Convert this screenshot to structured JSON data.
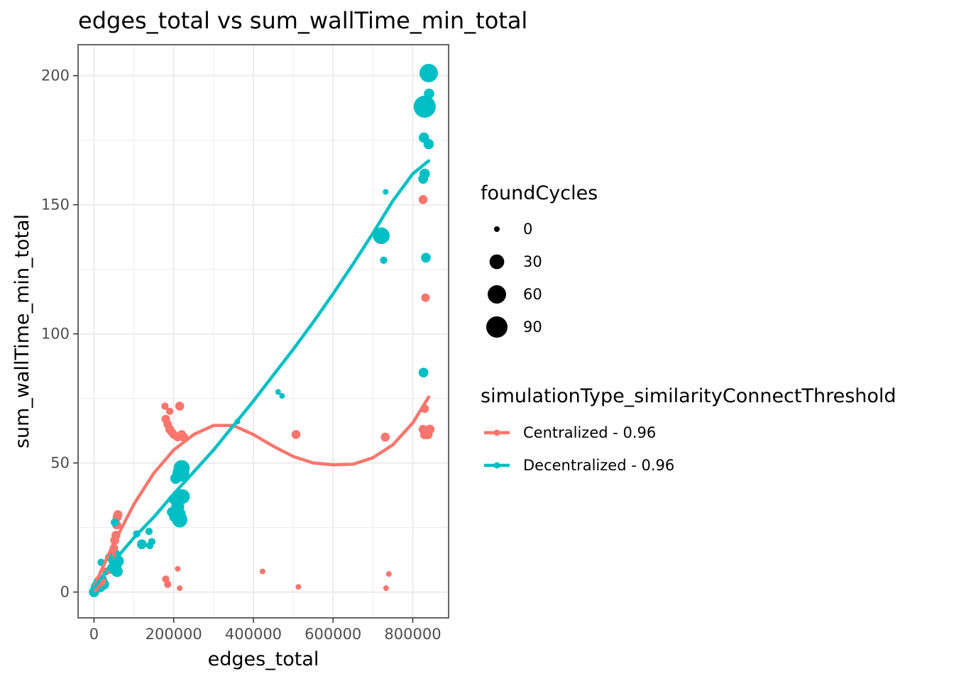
{
  "chart_data": {
    "type": "scatter",
    "title": "edges_total  vs  sum_wallTime_min_total",
    "xlabel": "edges_total",
    "ylabel": "sum_wallTime_min_total",
    "xlim": [
      -40000,
      890000
    ],
    "ylim": [
      -10,
      212
    ],
    "x_ticks": [
      0,
      200000,
      400000,
      600000,
      800000
    ],
    "x_tick_labels": [
      "0",
      "200000",
      "400000",
      "600000",
      "800000"
    ],
    "y_ticks": [
      0,
      50,
      100,
      150,
      200
    ],
    "y_tick_labels": [
      "0",
      "50",
      "100",
      "150",
      "200"
    ],
    "grid": true,
    "legend_placement": "right",
    "size_legend": {
      "title": "foundCycles",
      "entries": [
        {
          "label": "0",
          "value": 0
        },
        {
          "label": "30",
          "value": 30
        },
        {
          "label": "60",
          "value": 60
        },
        {
          "label": "90",
          "value": 90
        }
      ]
    },
    "color_legend": {
      "title": "simulationType_similarityConnectThreshold"
    },
    "series": [
      {
        "name": "Centralized - 0.96",
        "color": "#F8766D",
        "points": [
          {
            "x": 5000,
            "y": 1,
            "size": 0
          },
          {
            "x": 10000,
            "y": 3,
            "size": 2
          },
          {
            "x": 15000,
            "y": 5,
            "size": 3
          },
          {
            "x": 20000,
            "y": 4,
            "size": 2
          },
          {
            "x": 30000,
            "y": 8,
            "size": 2
          },
          {
            "x": 45000,
            "y": 14,
            "size": 3
          },
          {
            "x": 50000,
            "y": 17,
            "size": 3
          },
          {
            "x": 52000,
            "y": 20,
            "size": 4
          },
          {
            "x": 55000,
            "y": 22,
            "size": 4
          },
          {
            "x": 57000,
            "y": 26,
            "size": 4
          },
          {
            "x": 58000,
            "y": 29,
            "size": 4
          },
          {
            "x": 60000,
            "y": 30,
            "size": 4
          },
          {
            "x": 180000,
            "y": 5,
            "size": 1
          },
          {
            "x": 185000,
            "y": 3,
            "size": 1
          },
          {
            "x": 210000,
            "y": 9,
            "size": 0
          },
          {
            "x": 215000,
            "y": 1.5,
            "size": 0
          },
          {
            "x": 178000,
            "y": 72,
            "size": 1
          },
          {
            "x": 180000,
            "y": 67,
            "size": 3
          },
          {
            "x": 185000,
            "y": 65,
            "size": 3
          },
          {
            "x": 190000,
            "y": 63,
            "size": 4
          },
          {
            "x": 195000,
            "y": 62,
            "size": 3
          },
          {
            "x": 200000,
            "y": 61,
            "size": 3
          },
          {
            "x": 210000,
            "y": 60,
            "size": 3
          },
          {
            "x": 215000,
            "y": 72,
            "size": 4
          },
          {
            "x": 220000,
            "y": 61,
            "size": 4
          },
          {
            "x": 225000,
            "y": 60,
            "size": 4
          },
          {
            "x": 190000,
            "y": 70,
            "size": 1
          },
          {
            "x": 423000,
            "y": 8,
            "size": 0
          },
          {
            "x": 513000,
            "y": 2,
            "size": 0
          },
          {
            "x": 507000,
            "y": 61,
            "size": 4
          },
          {
            "x": 731000,
            "y": 60,
            "size": 4
          },
          {
            "x": 733000,
            "y": 1.5,
            "size": 0
          },
          {
            "x": 740000,
            "y": 7,
            "size": 0
          },
          {
            "x": 826000,
            "y": 152,
            "size": 4
          },
          {
            "x": 832000,
            "y": 114,
            "size": 3
          },
          {
            "x": 830000,
            "y": 71,
            "size": 3
          },
          {
            "x": 826000,
            "y": 63,
            "size": 4
          },
          {
            "x": 830000,
            "y": 61,
            "size": 5
          },
          {
            "x": 838000,
            "y": 61,
            "size": 5
          },
          {
            "x": 843000,
            "y": 63,
            "size": 5
          }
        ],
        "trend": [
          [
            0,
            2
          ],
          [
            20000,
            9
          ],
          [
            50000,
            19
          ],
          [
            100000,
            34
          ],
          [
            150000,
            46
          ],
          [
            200000,
            55
          ],
          [
            250000,
            61
          ],
          [
            300000,
            64.5
          ],
          [
            350000,
            64.5
          ],
          [
            400000,
            61
          ],
          [
            450000,
            56.5
          ],
          [
            500000,
            52.5
          ],
          [
            550000,
            50
          ],
          [
            600000,
            49.3
          ],
          [
            650000,
            49.5
          ],
          [
            700000,
            52
          ],
          [
            750000,
            57
          ],
          [
            800000,
            65.5
          ],
          [
            840000,
            75.5
          ]
        ]
      },
      {
        "name": "Decentralized - 0.96",
        "color": "#00BFC4",
        "points": [
          {
            "x": 0,
            "y": 0,
            "size": 8
          },
          {
            "x": 3000,
            "y": 1,
            "size": 6
          },
          {
            "x": 5000,
            "y": 2,
            "size": 8
          },
          {
            "x": 8000,
            "y": 3,
            "size": 6
          },
          {
            "x": 12000,
            "y": 4,
            "size": 8
          },
          {
            "x": 15000,
            "y": 2,
            "size": 10
          },
          {
            "x": 18000,
            "y": 11.5,
            "size": 1
          },
          {
            "x": 20000,
            "y": 5,
            "size": 6
          },
          {
            "x": 25000,
            "y": 3,
            "size": 8
          },
          {
            "x": 38000,
            "y": 13.5,
            "size": 2
          },
          {
            "x": 45000,
            "y": 9,
            "size": 8
          },
          {
            "x": 50000,
            "y": 12,
            "size": 10
          },
          {
            "x": 52000,
            "y": 15,
            "size": 6
          },
          {
            "x": 55000,
            "y": 10,
            "size": 10
          },
          {
            "x": 58000,
            "y": 8,
            "size": 12
          },
          {
            "x": 60000,
            "y": 12,
            "size": 14
          },
          {
            "x": 52000,
            "y": 27,
            "size": 2
          },
          {
            "x": 107000,
            "y": 22.5,
            "size": 1
          },
          {
            "x": 120000,
            "y": 18.5,
            "size": 6
          },
          {
            "x": 138000,
            "y": 23.5,
            "size": 1
          },
          {
            "x": 140000,
            "y": 18,
            "size": 1
          },
          {
            "x": 145000,
            "y": 19.5,
            "size": 1
          },
          {
            "x": 195000,
            "y": 31,
            "size": 6
          },
          {
            "x": 200000,
            "y": 29,
            "size": 4
          },
          {
            "x": 205000,
            "y": 44,
            "size": 10
          },
          {
            "x": 210000,
            "y": 33,
            "size": 20
          },
          {
            "x": 212000,
            "y": 30,
            "size": 30
          },
          {
            "x": 215000,
            "y": 28,
            "size": 35
          },
          {
            "x": 218000,
            "y": 46,
            "size": 45
          },
          {
            "x": 220000,
            "y": 48,
            "size": 40
          },
          {
            "x": 222000,
            "y": 37,
            "size": 30
          },
          {
            "x": 200000,
            "y": 36,
            "size": 8
          },
          {
            "x": 360000,
            "y": 66,
            "size": 0
          },
          {
            "x": 462000,
            "y": 77.5,
            "size": 0
          },
          {
            "x": 472000,
            "y": 76,
            "size": 0
          },
          {
            "x": 721000,
            "y": 138,
            "size": 45
          },
          {
            "x": 727000,
            "y": 128.5,
            "size": 1
          },
          {
            "x": 732000,
            "y": 155,
            "size": 0
          },
          {
            "x": 827000,
            "y": 85,
            "size": 6
          },
          {
            "x": 833000,
            "y": 129.5,
            "size": 6
          },
          {
            "x": 826000,
            "y": 160,
            "size": 6
          },
          {
            "x": 830000,
            "y": 162,
            "size": 8
          },
          {
            "x": 828000,
            "y": 176,
            "size": 8
          },
          {
            "x": 840000,
            "y": 173.5,
            "size": 8
          },
          {
            "x": 830000,
            "y": 188,
            "size": 100
          },
          {
            "x": 841000,
            "y": 193,
            "size": 8
          },
          {
            "x": 840000,
            "y": 201,
            "size": 60
          }
        ],
        "trend": [
          [
            0,
            1.5
          ],
          [
            50000,
            12
          ],
          [
            100000,
            21
          ],
          [
            150000,
            29
          ],
          [
            200000,
            38
          ],
          [
            250000,
            46.5
          ],
          [
            300000,
            55
          ],
          [
            350000,
            64.5
          ],
          [
            400000,
            74
          ],
          [
            450000,
            84
          ],
          [
            500000,
            94
          ],
          [
            550000,
            104.5
          ],
          [
            600000,
            115.5
          ],
          [
            650000,
            127
          ],
          [
            700000,
            139
          ],
          [
            750000,
            151.5
          ],
          [
            800000,
            162
          ],
          [
            840000,
            167
          ]
        ]
      }
    ]
  }
}
